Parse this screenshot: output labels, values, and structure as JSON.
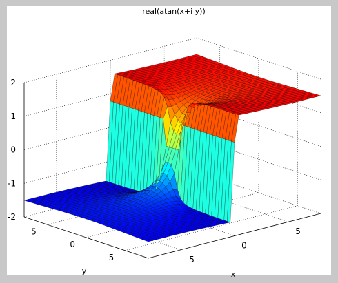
{
  "chart_data": {
    "type": "surface",
    "title": "real(atan(x+i y))",
    "xlabel": "x",
    "ylabel": "y",
    "zlabel": "",
    "xlim": [
      -8,
      8
    ],
    "ylim": [
      -8,
      8
    ],
    "zlim": [
      -2,
      2
    ],
    "x_ticks": [
      "-5",
      "0",
      "5"
    ],
    "y_ticks": [
      "-5",
      "0",
      "5"
    ],
    "z_ticks": [
      "-2",
      "-1",
      "0",
      "1",
      "2"
    ],
    "grid": true,
    "colormap": "jet",
    "function": "real(atan(x+i*y))",
    "plateau_values": {
      "x_negative": -1.5708,
      "x_positive": 1.5708
    },
    "sample_profile": {
      "x": [
        -8,
        -4,
        -2,
        -1,
        -0.5,
        0,
        0.5,
        1,
        2,
        4,
        8
      ],
      "z_at_y0": [
        -1.446,
        -1.326,
        -1.107,
        -0.785,
        -0.464,
        0,
        0.464,
        0.785,
        1.107,
        1.326,
        1.446
      ]
    },
    "colors": {
      "background": "#c8c8c8",
      "axes_background": "#ffffff",
      "edge": "#000000"
    }
  }
}
